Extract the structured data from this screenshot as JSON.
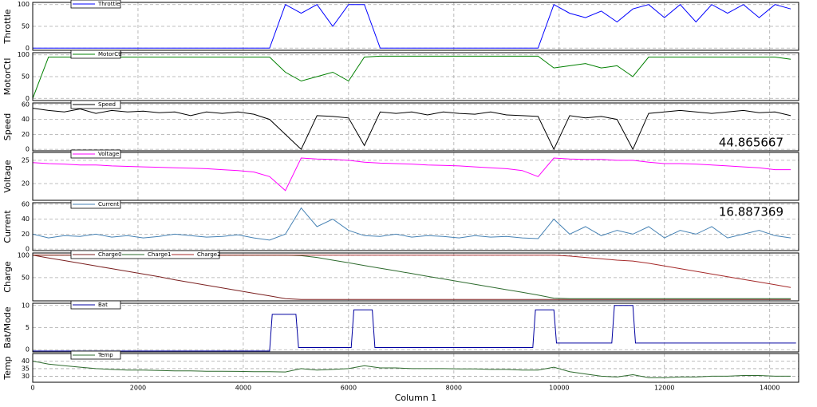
{
  "chart_data": [
    {
      "type": "line",
      "ylabel": "Throttle",
      "xlim": [
        0,
        14550
      ],
      "xticks": [
        0,
        2000,
        4000,
        6000,
        8000,
        10000,
        12000,
        14000
      ],
      "ylim": [
        -5,
        105
      ],
      "yticks": [
        0,
        50,
        100
      ],
      "grid": true,
      "x": [
        0,
        300,
        600,
        900,
        1200,
        1500,
        1800,
        2100,
        2400,
        2700,
        3000,
        3300,
        3600,
        3900,
        4200,
        4500,
        4800,
        5100,
        5400,
        5700,
        6000,
        6300,
        6600,
        6900,
        7200,
        7500,
        7800,
        8100,
        8400,
        8700,
        9000,
        9300,
        9600,
        9900,
        10200,
        10500,
        10800,
        11100,
        11400,
        11700,
        12000,
        12300,
        12600,
        12900,
        13200,
        13500,
        13800,
        14100,
        14400
      ],
      "series": [
        {
          "name": "Throttle",
          "color": "#0000ff",
          "values": [
            0,
            0,
            0,
            0,
            0,
            0,
            0,
            0,
            0,
            0,
            0,
            0,
            0,
            0,
            0,
            0,
            100,
            80,
            100,
            50,
            100,
            100,
            0,
            0,
            0,
            0,
            0,
            0,
            0,
            0,
            0,
            0,
            0,
            100,
            80,
            70,
            85,
            60,
            90,
            100,
            70,
            100,
            60,
            100,
            80,
            100,
            70,
            100,
            90
          ]
        }
      ]
    },
    {
      "type": "line",
      "ylabel": "MotorCtl",
      "xlim": [
        0,
        14550
      ],
      "xticks": [
        0,
        2000,
        4000,
        6000,
        8000,
        10000,
        12000,
        14000
      ],
      "ylim": [
        -5,
        105
      ],
      "yticks": [
        0,
        50,
        100
      ],
      "grid": true,
      "x": [
        0,
        300,
        600,
        900,
        1200,
        1500,
        1800,
        2100,
        2400,
        2700,
        3000,
        3300,
        3600,
        3900,
        4200,
        4500,
        4800,
        5100,
        5400,
        5700,
        6000,
        6300,
        6600,
        6900,
        7200,
        7500,
        7800,
        8100,
        8400,
        8700,
        9000,
        9300,
        9600,
        9900,
        10200,
        10500,
        10800,
        11100,
        11400,
        11700,
        12000,
        12300,
        12600,
        12900,
        13200,
        13500,
        13800,
        14100,
        14400
      ],
      "series": [
        {
          "name": "MotorCtl",
          "color": "#008000",
          "values": [
            0,
            95,
            95,
            95,
            95,
            95,
            95,
            95,
            95,
            95,
            95,
            95,
            95,
            95,
            95,
            95,
            60,
            40,
            50,
            60,
            40,
            95,
            97,
            97,
            97,
            97,
            97,
            97,
            97,
            97,
            97,
            97,
            97,
            70,
            75,
            80,
            70,
            75,
            50,
            95,
            95,
            95,
            95,
            95,
            95,
            95,
            95,
            95,
            90
          ]
        }
      ]
    },
    {
      "type": "line",
      "ylabel": "Speed",
      "annotation": "44.865667",
      "xlim": [
        0,
        14550
      ],
      "xticks": [
        0,
        2000,
        4000,
        6000,
        8000,
        10000,
        12000,
        14000
      ],
      "ylim": [
        -2,
        62
      ],
      "yticks": [
        0,
        20,
        40,
        60
      ],
      "grid": true,
      "x": [
        0,
        300,
        600,
        900,
        1200,
        1500,
        1800,
        2100,
        2400,
        2700,
        3000,
        3300,
        3600,
        3900,
        4200,
        4500,
        4800,
        5100,
        5400,
        5700,
        6000,
        6300,
        6600,
        6900,
        7200,
        7500,
        7800,
        8100,
        8400,
        8700,
        9000,
        9300,
        9600,
        9900,
        10200,
        10500,
        10800,
        11100,
        11400,
        11700,
        12000,
        12300,
        12600,
        12900,
        13200,
        13500,
        13800,
        14100,
        14400
      ],
      "series": [
        {
          "name": "Speed",
          "color": "#000000",
          "values": [
            55,
            52,
            50,
            54,
            48,
            52,
            50,
            51,
            49,
            50,
            45,
            50,
            48,
            50,
            47,
            40,
            20,
            0,
            45,
            44,
            42,
            5,
            50,
            48,
            50,
            46,
            50,
            48,
            47,
            50,
            46,
            45,
            44,
            0,
            45,
            42,
            44,
            40,
            0,
            48,
            50,
            52,
            50,
            48,
            50,
            52,
            49,
            50,
            45
          ]
        }
      ]
    },
    {
      "type": "line",
      "ylabel": "Voltage",
      "xlim": [
        0,
        14550
      ],
      "xticks": [
        0,
        2000,
        4000,
        6000,
        8000,
        10000,
        12000,
        14000
      ],
      "ylim": [
        16.4,
        26.7
      ],
      "yticks": [
        20,
        25
      ],
      "grid": true,
      "x": [
        0,
        300,
        600,
        900,
        1200,
        1500,
        1800,
        2100,
        2400,
        2700,
        3000,
        3300,
        3600,
        3900,
        4200,
        4500,
        4800,
        5100,
        5400,
        5700,
        6000,
        6300,
        6600,
        6900,
        7200,
        7500,
        7800,
        8100,
        8400,
        8700,
        9000,
        9300,
        9600,
        9900,
        10200,
        10500,
        10800,
        11100,
        11400,
        11700,
        12000,
        12300,
        12600,
        12900,
        13200,
        13500,
        13800,
        14100,
        14400
      ],
      "series": [
        {
          "name": "Voltage",
          "color": "#ff00ff",
          "values": [
            24.5,
            24.3,
            24.2,
            24,
            24,
            23.8,
            23.7,
            23.6,
            23.5,
            23.4,
            23.3,
            23.2,
            23,
            22.8,
            22.5,
            21.5,
            18.5,
            25.5,
            25.3,
            25.2,
            25,
            24.6,
            24.4,
            24.3,
            24.2,
            24,
            23.9,
            23.8,
            23.6,
            23.4,
            23.2,
            22.8,
            21.5,
            25.5,
            25.3,
            25.2,
            25.2,
            25,
            25,
            24.6,
            24.3,
            24.3,
            24.2,
            24,
            23.8,
            23.6,
            23.4,
            23,
            23
          ]
        }
      ]
    },
    {
      "type": "line",
      "ylabel": "Current",
      "annotation": "16.887369",
      "xlim": [
        0,
        14550
      ],
      "xticks": [
        0,
        2000,
        4000,
        6000,
        8000,
        10000,
        12000,
        14000
      ],
      "ylim": [
        -2,
        62
      ],
      "yticks": [
        0,
        20,
        40,
        60
      ],
      "grid": true,
      "x": [
        0,
        300,
        600,
        900,
        1200,
        1500,
        1800,
        2100,
        2400,
        2700,
        3000,
        3300,
        3600,
        3900,
        4200,
        4500,
        4800,
        5100,
        5400,
        5700,
        6000,
        6300,
        6600,
        6900,
        7200,
        7500,
        7800,
        8100,
        8400,
        8700,
        9000,
        9300,
        9600,
        9900,
        10200,
        10500,
        10800,
        11100,
        11400,
        11700,
        12000,
        12300,
        12600,
        12900,
        13200,
        13500,
        13800,
        14100,
        14400
      ],
      "series": [
        {
          "name": "Current",
          "color": "#4682b4",
          "values": [
            20,
            15,
            18,
            17,
            20,
            16,
            18,
            15,
            17,
            20,
            18,
            16,
            17,
            19,
            15,
            12,
            20,
            55,
            30,
            40,
            25,
            18,
            17,
            20,
            16,
            18,
            17,
            15,
            18,
            16,
            17,
            15,
            14,
            40,
            20,
            30,
            18,
            25,
            20,
            30,
            15,
            25,
            20,
            30,
            15,
            20,
            25,
            18,
            15
          ]
        }
      ]
    },
    {
      "type": "line",
      "ylabel": "Charge",
      "xlim": [
        0,
        14550
      ],
      "xticks": [
        0,
        2000,
        4000,
        6000,
        8000,
        10000,
        12000,
        14000
      ],
      "ylim": [
        -2,
        105
      ],
      "yticks": [
        50,
        100
      ],
      "grid": true,
      "x": [
        0,
        300,
        600,
        900,
        1200,
        1500,
        1800,
        2100,
        2400,
        2700,
        3000,
        3300,
        3600,
        3900,
        4200,
        4500,
        4800,
        5100,
        5400,
        5700,
        6000,
        6300,
        6600,
        6900,
        7200,
        7500,
        7800,
        8100,
        8400,
        8700,
        9000,
        9300,
        9600,
        9900,
        10200,
        10500,
        10800,
        11100,
        11400,
        11700,
        12000,
        12300,
        12600,
        12900,
        13200,
        13500,
        13800,
        14100,
        14400
      ],
      "series": [
        {
          "name": "Charge0",
          "color": "#7a1f1f",
          "values": [
            100,
            94,
            88,
            82,
            76,
            70,
            64,
            58,
            52,
            45,
            39,
            33,
            27,
            21,
            15,
            9,
            3,
            1,
            1,
            1,
            1,
            1,
            1,
            1,
            1,
            1,
            1,
            1,
            1,
            1,
            1,
            1,
            1,
            1,
            1,
            1,
            1,
            1,
            1,
            1,
            1,
            1,
            1,
            1,
            1,
            1,
            1,
            1,
            1
          ]
        },
        {
          "name": "Charge1",
          "color": "#2e6b2e",
          "values": [
            100,
            100,
            100,
            100,
            100,
            100,
            100,
            100,
            100,
            100,
            100,
            100,
            100,
            100,
            100,
            100,
            100,
            99,
            95,
            89,
            83,
            77,
            71,
            65,
            59,
            53,
            47,
            41,
            35,
            29,
            23,
            17,
            11,
            4,
            3,
            3,
            3,
            3,
            3,
            3,
            3,
            3,
            3,
            3,
            3,
            3,
            3,
            3,
            3
          ]
        },
        {
          "name": "Charge2",
          "color": "#a52a2a",
          "values": [
            100,
            100,
            100,
            100,
            100,
            100,
            100,
            100,
            100,
            100,
            100,
            100,
            100,
            100,
            100,
            100,
            100,
            100,
            100,
            100,
            100,
            100,
            100,
            100,
            100,
            100,
            100,
            100,
            100,
            100,
            100,
            100,
            100,
            100,
            98,
            95,
            92,
            89,
            87,
            82,
            76,
            70,
            64,
            58,
            52,
            46,
            40,
            34,
            28
          ]
        }
      ]
    },
    {
      "type": "line",
      "ylabel": "Bat/Mode",
      "xlim": [
        0,
        14550
      ],
      "xticks": [
        0,
        2000,
        4000,
        6000,
        8000,
        10000,
        12000,
        14000
      ],
      "ylim": [
        -0.5,
        10.5
      ],
      "yticks": [
        0,
        5,
        10
      ],
      "grid": true,
      "x": [
        0,
        4500,
        4550,
        5000,
        5050,
        6050,
        6100,
        6450,
        6500,
        9500,
        9550,
        9900,
        9950,
        11000,
        11050,
        11400,
        11450,
        14500
      ],
      "series": [
        {
          "name": "Bat",
          "color": "#0000a0",
          "values": [
            -0.3,
            -0.3,
            8,
            8,
            0.5,
            0.5,
            9,
            9,
            0.5,
            0.5,
            9,
            9,
            1.5,
            1.5,
            10,
            10,
            1.5,
            1.5
          ]
        }
      ]
    },
    {
      "type": "line",
      "ylabel": "Temp",
      "xlabel": "Column 1",
      "xlim": [
        0,
        14550
      ],
      "xticks": [
        0,
        2000,
        4000,
        6000,
        8000,
        10000,
        12000,
        14000
      ],
      "ylim": [
        26,
        45
      ],
      "yticks": [
        30,
        35,
        40
      ],
      "grid": true,
      "x": [
        0,
        300,
        600,
        900,
        1200,
        1500,
        1800,
        2100,
        2400,
        2700,
        3000,
        3300,
        3600,
        3900,
        4200,
        4500,
        4800,
        5100,
        5400,
        5700,
        6000,
        6300,
        6600,
        6900,
        7200,
        7500,
        7800,
        8100,
        8400,
        8700,
        9000,
        9300,
        9600,
        9900,
        10200,
        10500,
        10800,
        11100,
        11400,
        11700,
        12000,
        12300,
        12600,
        12900,
        13200,
        13500,
        13800,
        14100,
        14400
      ],
      "series": [
        {
          "name": "Temp",
          "color": "#2e6b2e",
          "values": [
            40,
            38,
            37,
            36,
            35,
            34.5,
            34,
            34,
            33.8,
            33.5,
            33.5,
            33.3,
            33.3,
            33.2,
            33,
            33,
            32.8,
            35,
            34,
            34.5,
            35,
            37,
            35.5,
            35.5,
            35,
            35,
            35,
            34.8,
            34.8,
            34.5,
            34.5,
            34,
            34,
            36,
            33,
            31.5,
            30,
            29.5,
            31,
            29,
            29,
            29.5,
            29.5,
            30,
            30,
            30.5,
            30.5,
            30,
            30
          ]
        }
      ]
    }
  ]
}
